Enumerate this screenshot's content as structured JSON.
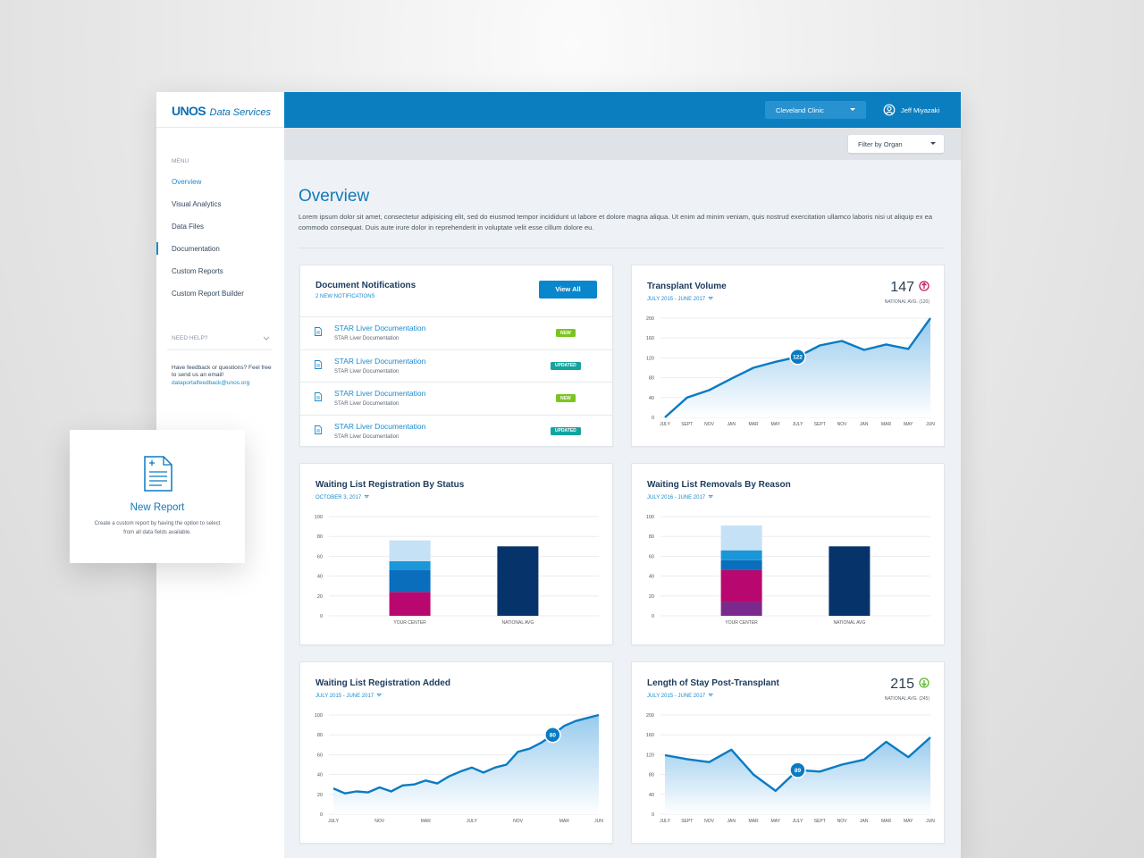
{
  "sidebar": {
    "logo": "UNOS",
    "logo_sub": "Data Services",
    "menu_label": "MENU",
    "menu": [
      "Overview",
      "Visual Analytics",
      "Data Files",
      "Documentation",
      "Custom Reports",
      "Custom Report Builder"
    ],
    "help_label": "NEED HELP?",
    "help_text": "Have feedback or questions? Feel free to send us an email!",
    "email": "dataportalfeedback@unos.org"
  },
  "header": {
    "center": "Cleveland Clinic",
    "user": "Jeff Miyazaki",
    "filter": "Filter by Organ"
  },
  "overview": {
    "title": "Overview",
    "text": "Lorem ipsum dolor sit amet, consectetur adipisicing elit, sed do eiusmod tempor incididunt ut labore et dolore magna aliqua. Ut enim ad minim veniam, quis nostrud exercitation ullamco laboris nisi ut aliquip ex ea commodo consequat. Duis aute irure dolor in reprehenderit in voluptate velit esse cillum dolore eu."
  },
  "notifications": {
    "title": "Document Notifications",
    "subtitle": "2 NEW NOTIFICATIONS",
    "button": "View All",
    "items": [
      {
        "title": "STAR Liver Documentation",
        "subtitle": "STAR Liver Documentation",
        "badge": "NEW",
        "color": "#7cc520"
      },
      {
        "title": "STAR Liver Documentation",
        "subtitle": "STAR Liver Documentation",
        "badge": "UPDATED",
        "color": "#14a49e"
      },
      {
        "title": "STAR Liver Documentation",
        "subtitle": "STAR Liver Documentation",
        "badge": "NEW",
        "color": "#7cc520"
      },
      {
        "title": "STAR Liver Documentation",
        "subtitle": "STAR Liver Documentation",
        "badge": "UPDATED",
        "color": "#14a49e"
      }
    ]
  },
  "new_report": {
    "title": "New Report",
    "text": "Create a custom report by having the option to select from all data fields available."
  },
  "chart_data": [
    {
      "type": "area",
      "title": "Transplant Volume",
      "subtitle": "JULY 2015 - JUNE 2017",
      "stat": "147",
      "stat_note": "NATIONAL AVG. (120)",
      "trend": "up",
      "trend_color": "#c8175e",
      "categories": [
        "JULY",
        "SEPT",
        "NOV",
        "JAN",
        "MAR",
        "MAY",
        "JULY",
        "SEPT",
        "NOV",
        "JAN",
        "MAR",
        "MAY",
        "JUN"
      ],
      "values": [
        0,
        40,
        55,
        78,
        100,
        112,
        122,
        145,
        154,
        136,
        147,
        138,
        200
      ],
      "highlight": 6,
      "color": "#0a7bc2",
      "ylim": [
        0,
        200
      ],
      "yticks": [
        0,
        40,
        80,
        120,
        160,
        200
      ],
      "grid": true
    },
    {
      "type": "stacked-bar",
      "title": "Waiting List Registration By Status",
      "subtitle": "OCTOBER 3, 2017",
      "categories": [
        "YOUR CENTER",
        "NATIONAL AVG"
      ],
      "series": [
        {
          "color": "#b8076e",
          "values": [
            24,
            null
          ]
        },
        {
          "color": "#0a6ebd",
          "values": [
            22,
            null
          ]
        },
        {
          "color": "#1b96d8",
          "values": [
            9,
            null
          ]
        },
        {
          "color": "#c5e1f5",
          "values": [
            21,
            null
          ]
        },
        {
          "color": "#06346a",
          "values": [
            null,
            70
          ]
        }
      ],
      "ylim": [
        0,
        100
      ],
      "yticks": [
        0,
        20,
        40,
        60,
        80,
        100
      ],
      "grid": true
    },
    {
      "type": "stacked-bar",
      "title": "Waiting List Removals By Reason",
      "subtitle": "JULY 2016 - JUNE 2017",
      "categories": [
        "YOUR CENTER",
        "NATIONAL AVG"
      ],
      "series": [
        {
          "color": "#7a2a8c",
          "values": [
            14,
            null
          ]
        },
        {
          "color": "#b8076e",
          "values": [
            32,
            null
          ]
        },
        {
          "color": "#0a6ebd",
          "values": [
            10,
            null
          ]
        },
        {
          "color": "#1b96d8",
          "values": [
            10,
            null
          ]
        },
        {
          "color": "#c5e1f5",
          "values": [
            25,
            null
          ]
        },
        {
          "color": "#06346a",
          "values": [
            null,
            70
          ]
        }
      ],
      "ylim": [
        0,
        100
      ],
      "yticks": [
        0,
        20,
        40,
        60,
        80,
        100
      ],
      "grid": true
    },
    {
      "type": "area",
      "title": "Waiting List Registration Added",
      "subtitle": "JULY 2015 - JUNE 2017",
      "categories": [
        "JULY",
        null,
        null,
        null,
        "NOV",
        null,
        null,
        null,
        "MAR",
        null,
        null,
        null,
        "JULY",
        null,
        null,
        null,
        "NOV",
        null,
        null,
        null,
        "MAR",
        null,
        null,
        "JUN"
      ],
      "values": [
        26,
        21,
        23,
        22,
        27,
        23,
        29,
        30,
        34,
        31,
        38,
        43,
        47,
        42,
        47,
        50,
        63,
        66,
        72,
        80,
        89,
        94,
        97,
        100
      ],
      "highlight": 19,
      "color": "#0a7bc2",
      "ylim": [
        0,
        100
      ],
      "yticks": [
        0,
        20,
        40,
        60,
        80,
        100
      ],
      "grid": true
    },
    {
      "type": "area",
      "title": "Length of Stay Post-Transplant",
      "subtitle": "JULY 2015 - JUNE 2017",
      "stat": "215",
      "stat_note": "NATIONAL AVG. (245)",
      "trend": "down",
      "trend_color": "#5cb82e",
      "categories": [
        "JULY",
        "SEPT",
        "NOV",
        "JAN",
        "MAR",
        "MAY",
        "JULY",
        "SEPT",
        "NOV",
        "JAN",
        "MAR",
        "MAY",
        "JUN"
      ],
      "values": [
        119,
        111,
        105,
        130,
        80,
        47,
        89,
        86,
        100,
        110,
        146,
        115,
        155
      ],
      "highlight": 6,
      "color": "#0a7bc2",
      "ylim": [
        0,
        200
      ],
      "yticks": [
        0,
        40,
        80,
        120,
        160,
        200
      ],
      "grid": true
    }
  ]
}
